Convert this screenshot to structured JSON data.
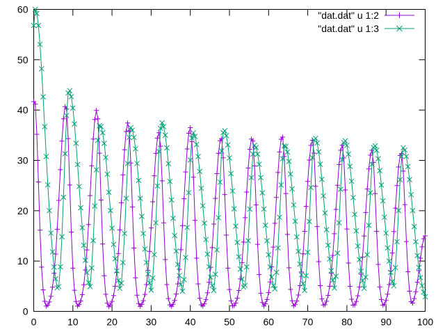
{
  "chart_data": {
    "type": "line",
    "title": "",
    "xlabel": "",
    "ylabel": "",
    "xlim": [
      0,
      100
    ],
    "ylim": [
      0,
      60
    ],
    "x_ticks": [
      0,
      10,
      20,
      30,
      40,
      50,
      60,
      70,
      80,
      90,
      100
    ],
    "y_ticks": [
      0,
      10,
      20,
      30,
      40,
      50,
      60
    ],
    "x_tick_labels": [
      "0",
      "10",
      "20",
      "30",
      "40",
      "50",
      "60",
      "70",
      "80",
      "90",
      "100"
    ],
    "y_tick_labels": [
      "0",
      "10",
      "20",
      "30",
      "40",
      "50",
      "60"
    ],
    "grid": false,
    "legend_position": "top-right",
    "sample_step": 0.4,
    "series": [
      {
        "name": "\"dat.dat\" u 1:2",
        "color": "#9400d3",
        "marker": "plus",
        "x_start": 0,
        "x_end": 100,
        "peaks_x": [
          0.2,
          8.2,
          16.1,
          24.1,
          32.0,
          40.0,
          47.9,
          55.8,
          63.5,
          71.2,
          78.8,
          86.4,
          93.9
        ],
        "peaks_y": [
          42,
          41,
          40,
          37.5,
          35.5,
          36.5,
          34.5,
          34.5,
          34.8,
          34,
          33,
          32,
          31.5
        ],
        "baseline": 0.6,
        "rise_width": 1.6,
        "fall_width": 1.0,
        "end_value": 15
      },
      {
        "name": "\"dat.dat\" u 1:3",
        "color": "#009e73",
        "marker": "cross",
        "x_start": 0,
        "x_end": 100,
        "peaks_x": [
          0.4,
          9.0,
          16.9,
          24.8,
          32.7,
          40.7,
          48.6,
          56.4,
          64.1,
          71.8,
          79.4,
          87.0,
          94.4
        ],
        "peaks_y": [
          60,
          44,
          37,
          36.5,
          37.5,
          35.5,
          36,
          33,
          33,
          34.5,
          34,
          33,
          32.5
        ],
        "baseline": 0.8,
        "rise_width": 1.2,
        "fall_width": 2.4,
        "end_value": 1.5
      }
    ]
  }
}
